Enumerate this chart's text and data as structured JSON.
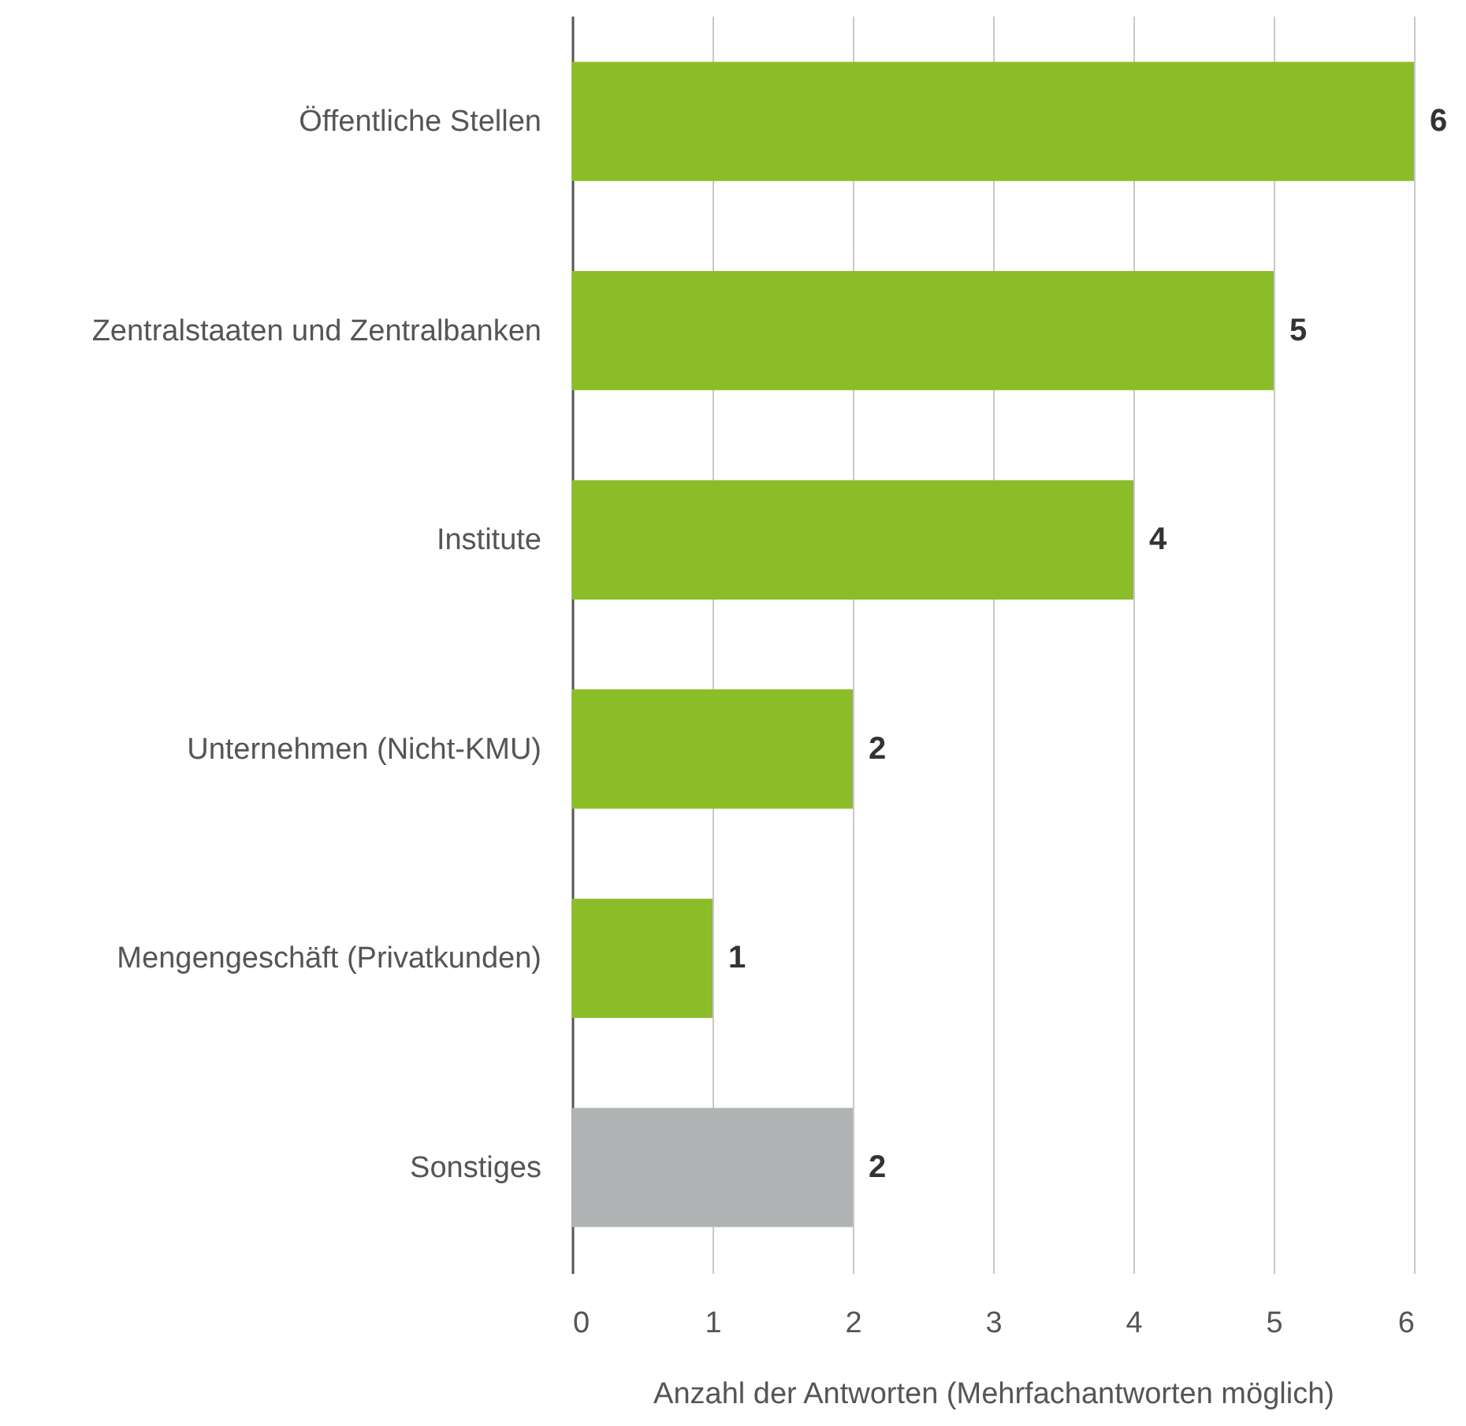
{
  "chart_data": {
    "type": "bar",
    "orientation": "horizontal",
    "categories": [
      "Öffentliche Stellen",
      "Zentralstaaten und Zentralbanken",
      "Institute",
      "Unternehmen (Nicht-KMU)",
      "Mengengeschäft (Privatkunden)",
      "Sonstiges"
    ],
    "values": [
      6,
      5,
      4,
      2,
      1,
      2
    ],
    "colors": [
      "#8abd28",
      "#8abd28",
      "#8abd28",
      "#8abd28",
      "#8abd28",
      "#b1b4b4"
    ],
    "xlabel": "Anzahl der Antworten (Mehrfachantworten möglich)",
    "xlim": [
      0,
      6
    ],
    "xticks": [
      0,
      1,
      2,
      3,
      4,
      5,
      6
    ],
    "grid": true,
    "data_labels": true
  }
}
